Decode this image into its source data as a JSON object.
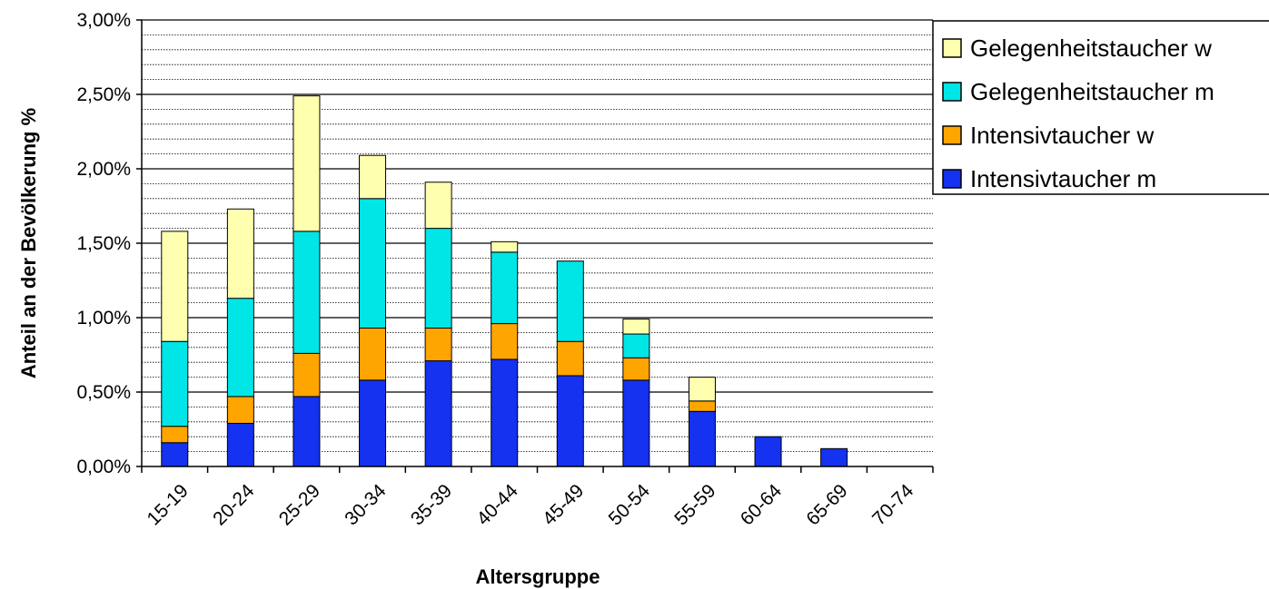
{
  "chart_data": {
    "type": "bar",
    "stacked": true,
    "title": "",
    "xlabel": "Altersgruppe",
    "ylabel": "Anteil an der Bevölkerung %",
    "ylim": [
      0,
      3
    ],
    "y_ticks": [
      "0,00%",
      "0,50%",
      "1,00%",
      "1,50%",
      "2,00%",
      "2,50%",
      "3,00%"
    ],
    "grid": "horizontal major solid, minor dotted",
    "legend_position": "right",
    "categories": [
      "15-19",
      "20-24",
      "25-29",
      "30-34",
      "35-39",
      "40-44",
      "45-49",
      "50-54",
      "55-59",
      "60-64",
      "65-69",
      "70-74"
    ],
    "series": [
      {
        "name": "Intensivtaucher m",
        "color": "#1432f0",
        "values": [
          0.16,
          0.29,
          0.47,
          0.58,
          0.71,
          0.72,
          0.61,
          0.58,
          0.37,
          0.2,
          0.12,
          0
        ]
      },
      {
        "name": "Intensivtaucher w",
        "color": "#ffa500",
        "values": [
          0.11,
          0.18,
          0.29,
          0.35,
          0.22,
          0.24,
          0.23,
          0.15,
          0.07,
          0,
          0,
          0
        ]
      },
      {
        "name": "Gelegenheitstaucher m",
        "color": "#00e6e6",
        "values": [
          0.57,
          0.66,
          0.82,
          0.87,
          0.67,
          0.48,
          0.54,
          0.16,
          0,
          0,
          0,
          0
        ]
      },
      {
        "name": "Gelegenheitstaucher w",
        "color": "#ffffb0",
        "values": [
          0.74,
          0.6,
          0.91,
          0.29,
          0.31,
          0.07,
          0,
          0.1,
          0.16,
          0,
          0,
          0
        ]
      }
    ]
  }
}
